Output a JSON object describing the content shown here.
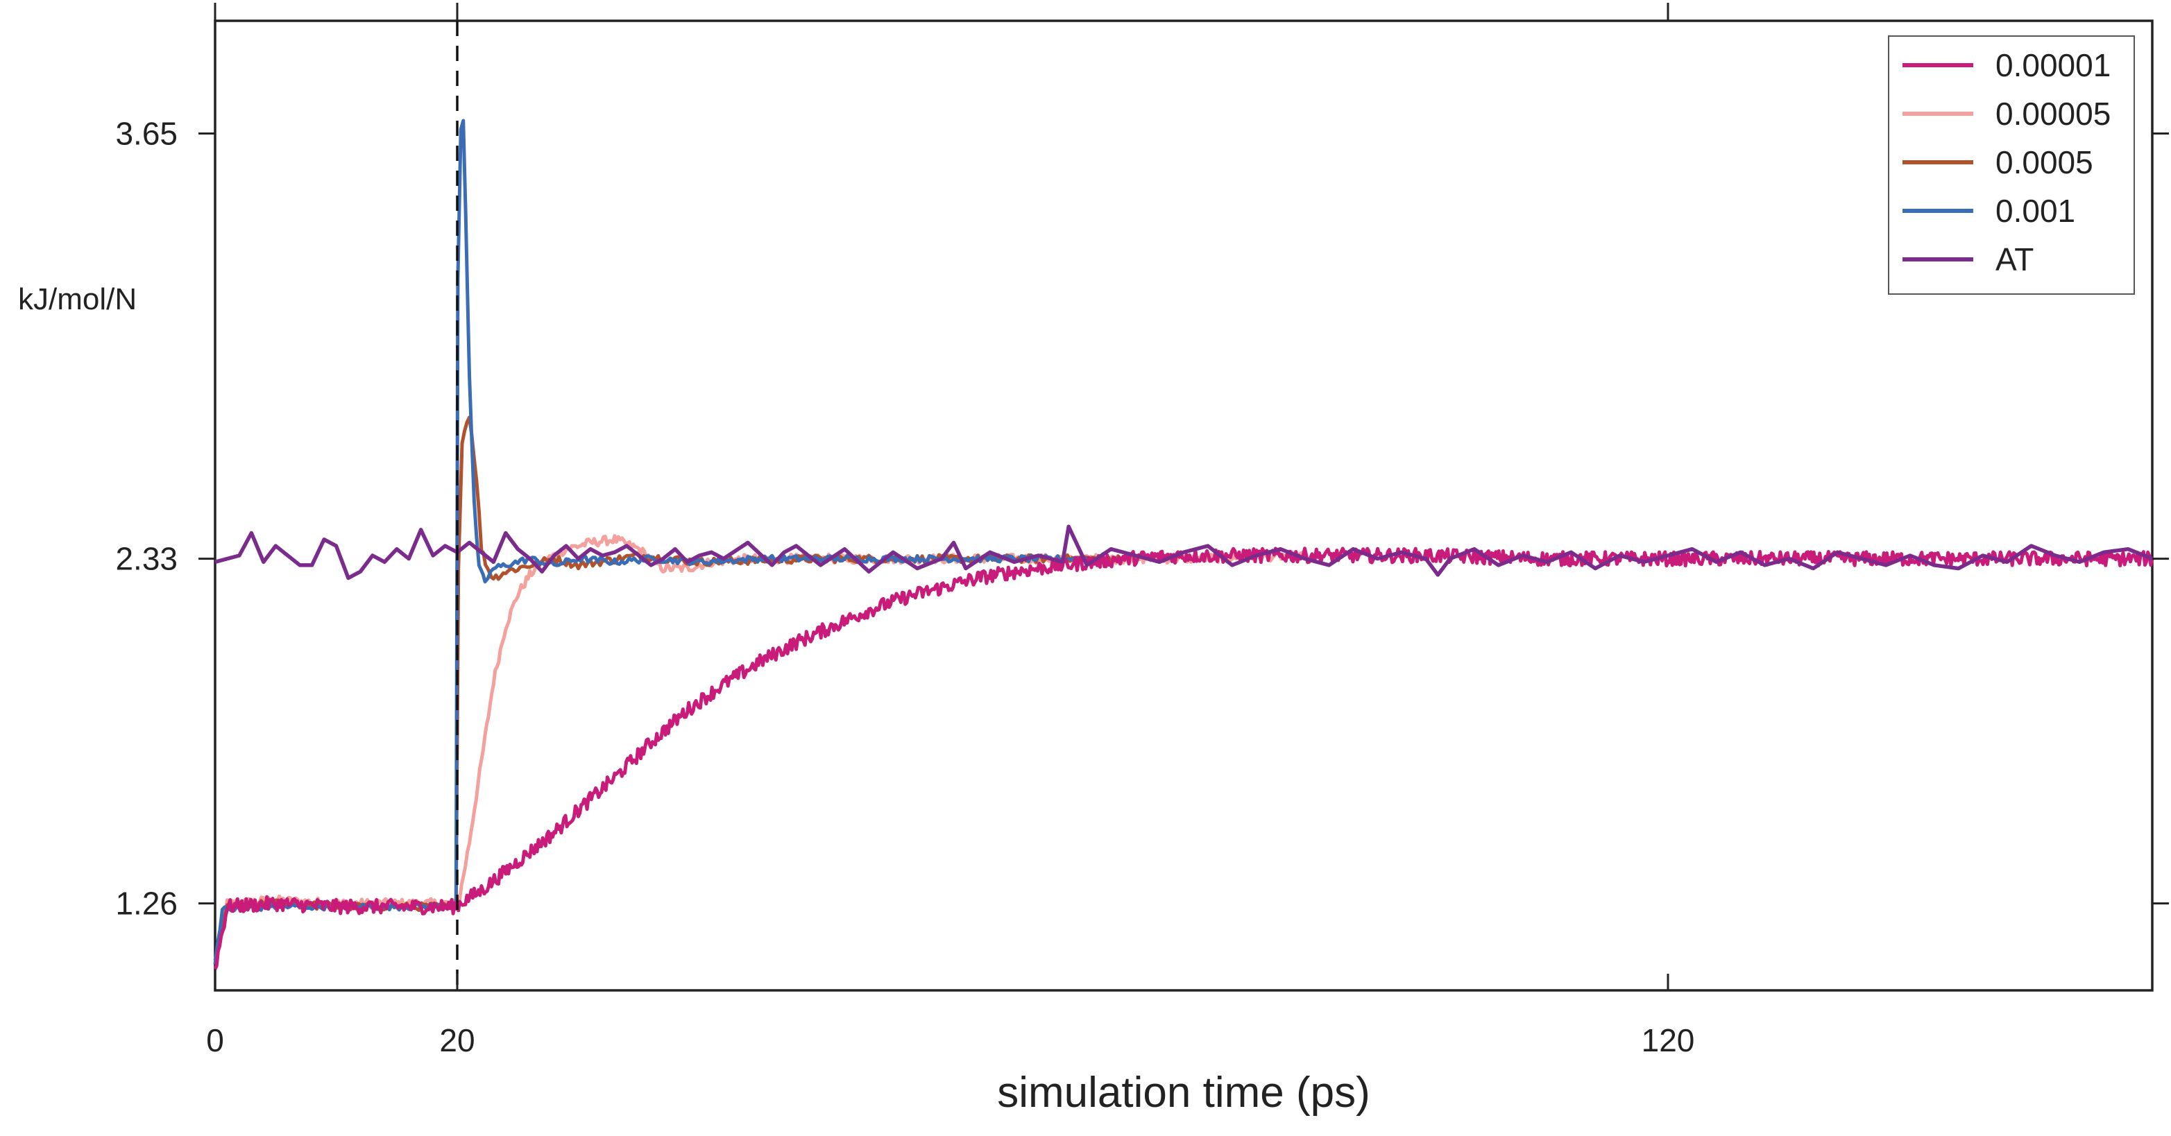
{
  "chart_data": {
    "type": "line",
    "title": "",
    "xlabel": "simulation time (ps)",
    "ylabel": "kJ/mol/N",
    "xlim": [
      0,
      160
    ],
    "ylim": [
      0.99,
      4.0
    ],
    "x_ticks": [
      0,
      20,
      120
    ],
    "y_ticks": [
      1.26,
      2.33,
      3.65
    ],
    "x_tick_labels": [
      "0",
      "20",
      "120"
    ],
    "y_tick_labels": [
      "1.26",
      "2.33",
      "3.65"
    ],
    "vline_x": 20,
    "vline_style": "dashed",
    "grid": false,
    "legend_position": "top-right",
    "series": [
      {
        "name": "0.00001",
        "color": "#c81b7a",
        "points": [
          [
            0,
            1.06
          ],
          [
            1,
            1.25
          ],
          [
            5,
            1.26
          ],
          [
            10,
            1.25
          ],
          [
            15,
            1.25
          ],
          [
            19.9,
            1.25
          ],
          [
            20.2,
            1.26
          ],
          [
            22,
            1.3
          ],
          [
            24,
            1.36
          ],
          [
            26,
            1.42
          ],
          [
            28,
            1.48
          ],
          [
            30,
            1.55
          ],
          [
            33,
            1.65
          ],
          [
            36,
            1.76
          ],
          [
            39,
            1.86
          ],
          [
            42,
            1.94
          ],
          [
            45,
            2.01
          ],
          [
            48,
            2.07
          ],
          [
            51,
            2.12
          ],
          [
            54,
            2.17
          ],
          [
            57,
            2.21
          ],
          [
            60,
            2.24
          ],
          [
            63,
            2.27
          ],
          [
            66,
            2.29
          ],
          [
            70,
            2.31
          ],
          [
            75,
            2.33
          ],
          [
            80,
            2.34
          ],
          [
            90,
            2.34
          ],
          [
            100,
            2.34
          ],
          [
            110,
            2.33
          ],
          [
            120,
            2.33
          ],
          [
            130,
            2.33
          ],
          [
            140,
            2.33
          ],
          [
            150,
            2.33
          ],
          [
            160,
            2.33
          ]
        ]
      },
      {
        "name": "0.00005",
        "color": "#f4a09c",
        "points": [
          [
            0,
            1.08
          ],
          [
            1,
            1.26
          ],
          [
            5,
            1.27
          ],
          [
            10,
            1.26
          ],
          [
            15,
            1.26
          ],
          [
            19.9,
            1.26
          ],
          [
            20.2,
            1.28
          ],
          [
            21,
            1.45
          ],
          [
            22,
            1.7
          ],
          [
            23,
            1.95
          ],
          [
            24,
            2.12
          ],
          [
            25,
            2.22
          ],
          [
            26,
            2.28
          ],
          [
            27,
            2.32
          ],
          [
            29,
            2.36
          ],
          [
            31,
            2.38
          ],
          [
            33,
            2.39
          ],
          [
            35,
            2.36
          ],
          [
            37,
            2.3
          ],
          [
            39,
            2.3
          ],
          [
            41,
            2.32
          ],
          [
            44,
            2.33
          ],
          [
            48,
            2.33
          ],
          [
            55,
            2.33
          ],
          [
            65,
            2.33
          ],
          [
            75,
            2.33
          ],
          [
            80,
            2.33
          ],
          [
            90,
            2.34
          ]
        ]
      },
      {
        "name": "0.0005",
        "color": "#b0522c",
        "points": [
          [
            0,
            1.08
          ],
          [
            1,
            1.25
          ],
          [
            5,
            1.26
          ],
          [
            10,
            1.25
          ],
          [
            15,
            1.25
          ],
          [
            19.9,
            1.25
          ],
          [
            20.1,
            2.3
          ],
          [
            20.4,
            2.7
          ],
          [
            21,
            2.78
          ],
          [
            21.6,
            2.58
          ],
          [
            22,
            2.36
          ],
          [
            22.5,
            2.3
          ],
          [
            23,
            2.27
          ],
          [
            24,
            2.29
          ],
          [
            26,
            2.31
          ],
          [
            28,
            2.33
          ],
          [
            30,
            2.31
          ],
          [
            35,
            2.34
          ],
          [
            40,
            2.32
          ],
          [
            50,
            2.33
          ],
          [
            60,
            2.33
          ],
          [
            70,
            2.33
          ],
          [
            75,
            2.33
          ]
        ]
      },
      {
        "name": "0.001",
        "color": "#3a6db5",
        "points": [
          [
            0,
            1.08
          ],
          [
            0.6,
            1.24
          ],
          [
            5,
            1.25
          ],
          [
            10,
            1.25
          ],
          [
            15,
            1.25
          ],
          [
            19.9,
            1.25
          ],
          [
            20.05,
            3.2
          ],
          [
            20.3,
            3.66
          ],
          [
            20.5,
            3.69
          ],
          [
            20.7,
            3.4
          ],
          [
            21,
            2.9
          ],
          [
            21.4,
            2.5
          ],
          [
            21.8,
            2.3
          ],
          [
            22.3,
            2.26
          ],
          [
            23,
            2.3
          ],
          [
            24,
            2.31
          ],
          [
            26,
            2.33
          ],
          [
            28,
            2.31
          ],
          [
            30,
            2.33
          ],
          [
            33,
            2.32
          ],
          [
            36,
            2.33
          ],
          [
            40,
            2.32
          ],
          [
            45,
            2.33
          ],
          [
            50,
            2.33
          ],
          [
            55,
            2.33
          ],
          [
            60,
            2.33
          ],
          [
            65,
            2.33
          ],
          [
            70,
            2.33
          ],
          [
            72,
            2.33
          ]
        ]
      },
      {
        "name": "AT",
        "color": "#7a2b8b",
        "points": [
          [
            0,
            2.32
          ],
          [
            2,
            2.34
          ],
          [
            3,
            2.41
          ],
          [
            4,
            2.32
          ],
          [
            5,
            2.37
          ],
          [
            6,
            2.34
          ],
          [
            7,
            2.31
          ],
          [
            8,
            2.31
          ],
          [
            9,
            2.39
          ],
          [
            10,
            2.37
          ],
          [
            11,
            2.27
          ],
          [
            12,
            2.29
          ],
          [
            13,
            2.34
          ],
          [
            14,
            2.32
          ],
          [
            15,
            2.36
          ],
          [
            16,
            2.33
          ],
          [
            17,
            2.42
          ],
          [
            18,
            2.34
          ],
          [
            19,
            2.37
          ],
          [
            20,
            2.35
          ],
          [
            21,
            2.38
          ],
          [
            22,
            2.35
          ],
          [
            23,
            2.32
          ],
          [
            24,
            2.41
          ],
          [
            25,
            2.36
          ],
          [
            26,
            2.33
          ],
          [
            27,
            2.29
          ],
          [
            28,
            2.34
          ],
          [
            29,
            2.37
          ],
          [
            30,
            2.33
          ],
          [
            31,
            2.36
          ],
          [
            32,
            2.34
          ],
          [
            33,
            2.35
          ],
          [
            34,
            2.37
          ],
          [
            35,
            2.34
          ],
          [
            36,
            2.31
          ],
          [
            37,
            2.33
          ],
          [
            38,
            2.36
          ],
          [
            39,
            2.32
          ],
          [
            40,
            2.34
          ],
          [
            41,
            2.35
          ],
          [
            42,
            2.33
          ],
          [
            44,
            2.38
          ],
          [
            46,
            2.31
          ],
          [
            47,
            2.35
          ],
          [
            48,
            2.37
          ],
          [
            50,
            2.31
          ],
          [
            52,
            2.36
          ],
          [
            54,
            2.29
          ],
          [
            56,
            2.35
          ],
          [
            58,
            2.3
          ],
          [
            60,
            2.33
          ],
          [
            61,
            2.38
          ],
          [
            62,
            2.3
          ],
          [
            64,
            2.35
          ],
          [
            66,
            2.32
          ],
          [
            68,
            2.34
          ],
          [
            70,
            2.32
          ],
          [
            70.5,
            2.43
          ],
          [
            72,
            2.31
          ],
          [
            74,
            2.36
          ],
          [
            76,
            2.34
          ],
          [
            78,
            2.32
          ],
          [
            80,
            2.35
          ],
          [
            82,
            2.37
          ],
          [
            84,
            2.31
          ],
          [
            86,
            2.34
          ],
          [
            88,
            2.36
          ],
          [
            90,
            2.33
          ],
          [
            92,
            2.31
          ],
          [
            94,
            2.36
          ],
          [
            96,
            2.33
          ],
          [
            98,
            2.35
          ],
          [
            100,
            2.33
          ],
          [
            101,
            2.28
          ],
          [
            102,
            2.33
          ],
          [
            104,
            2.36
          ],
          [
            106,
            2.31
          ],
          [
            108,
            2.34
          ],
          [
            110,
            2.32
          ],
          [
            112,
            2.35
          ],
          [
            114,
            2.3
          ],
          [
            116,
            2.34
          ],
          [
            118,
            2.32
          ],
          [
            120,
            2.34
          ],
          [
            122,
            2.36
          ],
          [
            124,
            2.32
          ],
          [
            126,
            2.35
          ],
          [
            128,
            2.31
          ],
          [
            130,
            2.33
          ],
          [
            132,
            2.3
          ],
          [
            134,
            2.35
          ],
          [
            136,
            2.33
          ],
          [
            138,
            2.31
          ],
          [
            140,
            2.34
          ],
          [
            142,
            2.31
          ],
          [
            144,
            2.3
          ],
          [
            146,
            2.34
          ],
          [
            148,
            2.32
          ],
          [
            150,
            2.37
          ],
          [
            152,
            2.34
          ],
          [
            154,
            2.32
          ],
          [
            156,
            2.35
          ],
          [
            158,
            2.36
          ],
          [
            160,
            2.33
          ]
        ]
      }
    ]
  }
}
